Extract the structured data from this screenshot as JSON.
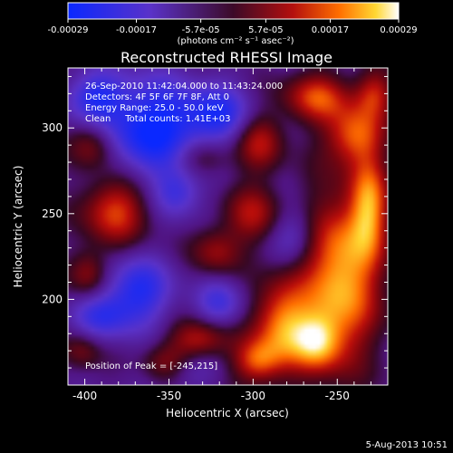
{
  "chart_data": {
    "type": "heatmap",
    "title": "Reconstructed RHESSI Image",
    "xlabel": "Heliocentric X (arcsec)",
    "ylabel": "Heliocentric Y (arcsec)",
    "xlim": [
      -410,
      -220
    ],
    "ylim": [
      150,
      335
    ],
    "xticks": [
      {
        "value": -400,
        "label": "-400"
      },
      {
        "value": -350,
        "label": "-350"
      },
      {
        "value": -300,
        "label": "-300"
      },
      {
        "value": -250,
        "label": "-250"
      }
    ],
    "yticks": [
      {
        "value": 200,
        "label": "200"
      },
      {
        "value": 250,
        "label": "250"
      },
      {
        "value": 300,
        "label": "300"
      }
    ],
    "grid": false,
    "colorbar": {
      "position": "top",
      "range": [
        -0.00029,
        0.00029
      ],
      "ticks": [
        {
          "value": -0.00029,
          "label": "-0.00029"
        },
        {
          "value": -0.00017,
          "label": "-0.00017"
        },
        {
          "value": -5.7e-05,
          "label": "-5.7e-05"
        },
        {
          "value": 5.7e-05,
          "label": "5.7e-05"
        },
        {
          "value": 0.00017,
          "label": "0.00017"
        },
        {
          "value": 0.00029,
          "label": "0.00029"
        }
      ],
      "units_label": "(photons cm⁻² s⁻¹ asec⁻²)",
      "colormap": "blue-to-red-to-white"
    },
    "annotations": [
      "26-Sep-2010 11:42:04.000 to 11:43:24.000",
      "Detectors: 4F 5F 6F 7F 8F, Att 0",
      "Energy Range: 25.0 - 50.0 keV",
      "Clean     Total counts: 1.41E+03"
    ],
    "peak_label": "Position of Peak = [-245,215]",
    "peak": {
      "x": -245,
      "y": 215
    },
    "footer_date": "5-Aug-2013 10:51",
    "blobs": [
      {
        "x": -248,
        "y": 213,
        "sx": 16,
        "sy": 34,
        "a": 1.0
      },
      {
        "x": -283,
        "y": 185,
        "sx": 12,
        "sy": 18,
        "a": 0.85
      },
      {
        "x": -262,
        "y": 175,
        "sx": 10,
        "sy": 12,
        "a": 0.7
      },
      {
        "x": -298,
        "y": 164,
        "sx": 10,
        "sy": 9,
        "a": 0.65
      },
      {
        "x": -231,
        "y": 255,
        "sx": 8,
        "sy": 20,
        "a": 0.75
      },
      {
        "x": -240,
        "y": 296,
        "sx": 12,
        "sy": 12,
        "a": 0.72
      },
      {
        "x": -262,
        "y": 318,
        "sx": 14,
        "sy": 10,
        "a": 0.68
      },
      {
        "x": -296,
        "y": 292,
        "sx": 10,
        "sy": 12,
        "a": 0.55
      },
      {
        "x": -300,
        "y": 250,
        "sx": 12,
        "sy": 12,
        "a": 0.5
      },
      {
        "x": -322,
        "y": 228,
        "sx": 10,
        "sy": 10,
        "a": 0.45
      },
      {
        "x": -332,
        "y": 177,
        "sx": 12,
        "sy": 8,
        "a": 0.55
      },
      {
        "x": -352,
        "y": 162,
        "sx": 10,
        "sy": 8,
        "a": 0.5
      },
      {
        "x": -330,
        "y": 283,
        "sx": 12,
        "sy": 8,
        "a": 0.4
      },
      {
        "x": -382,
        "y": 252,
        "sx": 14,
        "sy": 14,
        "a": 0.7
      },
      {
        "x": -395,
        "y": 290,
        "sx": 10,
        "sy": 10,
        "a": 0.5
      },
      {
        "x": -398,
        "y": 215,
        "sx": 8,
        "sy": 10,
        "a": 0.45
      },
      {
        "x": -228,
        "y": 320,
        "sx": 8,
        "sy": 10,
        "a": 0.55
      },
      {
        "x": -402,
        "y": 170,
        "sx": 8,
        "sy": 8,
        "a": 0.35
      },
      {
        "x": -360,
        "y": 300,
        "sx": 22,
        "sy": 20,
        "a": -0.85
      },
      {
        "x": -368,
        "y": 205,
        "sx": 14,
        "sy": 14,
        "a": -0.65
      },
      {
        "x": -320,
        "y": 308,
        "sx": 14,
        "sy": 12,
        "a": -0.55
      },
      {
        "x": -395,
        "y": 318,
        "sx": 12,
        "sy": 10,
        "a": -0.55
      },
      {
        "x": -345,
        "y": 262,
        "sx": 10,
        "sy": 10,
        "a": -0.45
      },
      {
        "x": -390,
        "y": 190,
        "sx": 12,
        "sy": 10,
        "a": -0.5
      },
      {
        "x": -320,
        "y": 198,
        "sx": 10,
        "sy": 10,
        "a": -0.45
      },
      {
        "x": -275,
        "y": 238,
        "sx": 10,
        "sy": 12,
        "a": -0.4
      },
      {
        "x": -345,
        "y": 158,
        "sx": 14,
        "sy": 8,
        "a": -0.3
      }
    ]
  }
}
